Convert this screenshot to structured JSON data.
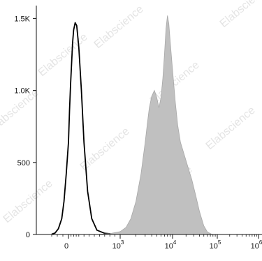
{
  "chart_data": {
    "type": "area",
    "title": "",
    "xlabel": "",
    "ylabel": "",
    "x_scale": "biexponential",
    "xlim": [
      -200,
      1000000
    ],
    "ylim": [
      0,
      1560
    ],
    "y_ticks": [
      {
        "value": 0,
        "label": "0"
      },
      {
        "value": 500,
        "label": "500"
      },
      {
        "value": 1000,
        "label": "1.0K"
      },
      {
        "value": 1500,
        "label": "1.5K"
      }
    ],
    "x_ticks": [
      {
        "value": 0,
        "base": "0",
        "exp": ""
      },
      {
        "value": 1000,
        "base": "10",
        "exp": "3"
      },
      {
        "value": 10000,
        "base": "10",
        "exp": "4"
      },
      {
        "value": 100000,
        "base": "10",
        "exp": "5"
      },
      {
        "value": 1000000,
        "base": "10",
        "exp": "6"
      }
    ],
    "series": [
      {
        "style": "outline",
        "color": "#000000",
        "x": [
          -150,
          -120,
          -90,
          -60,
          -40,
          -20,
          0,
          20,
          40,
          60,
          80,
          100,
          130,
          160,
          200,
          250,
          300,
          370,
          450,
          550,
          700,
          900
        ],
        "y": [
          2,
          10,
          40,
          110,
          230,
          420,
          640,
          860,
          1040,
          1180,
          1330,
          1420,
          1470,
          1450,
          1300,
          1000,
          640,
          300,
          110,
          30,
          8,
          2
        ]
      },
      {
        "style": "filled",
        "color": "#c0c0c0",
        "x": [
          600,
          800,
          1000,
          1300,
          1600,
          2000,
          2500,
          3000,
          3300,
          3600,
          4000,
          4500,
          5000,
          5500,
          6000,
          6500,
          7000,
          7500,
          8000,
          8500,
          9000,
          10000,
          11500,
          13000,
          15000,
          18000,
          22000,
          27000,
          33000,
          40000,
          50000,
          60000,
          75000
        ],
        "y": [
          2,
          6,
          20,
          50,
          110,
          230,
          420,
          640,
          770,
          880,
          960,
          1000,
          950,
          880,
          950,
          1080,
          1250,
          1430,
          1520,
          1460,
          1340,
          1140,
          920,
          760,
          640,
          560,
          470,
          380,
          270,
          160,
          60,
          18,
          2
        ]
      }
    ],
    "watermark": "Elabscience",
    "colors": {
      "axis": "#111111",
      "outline": "#000000",
      "fill": "#c0c0c0",
      "fill_edge": "#a8a8a8"
    }
  }
}
